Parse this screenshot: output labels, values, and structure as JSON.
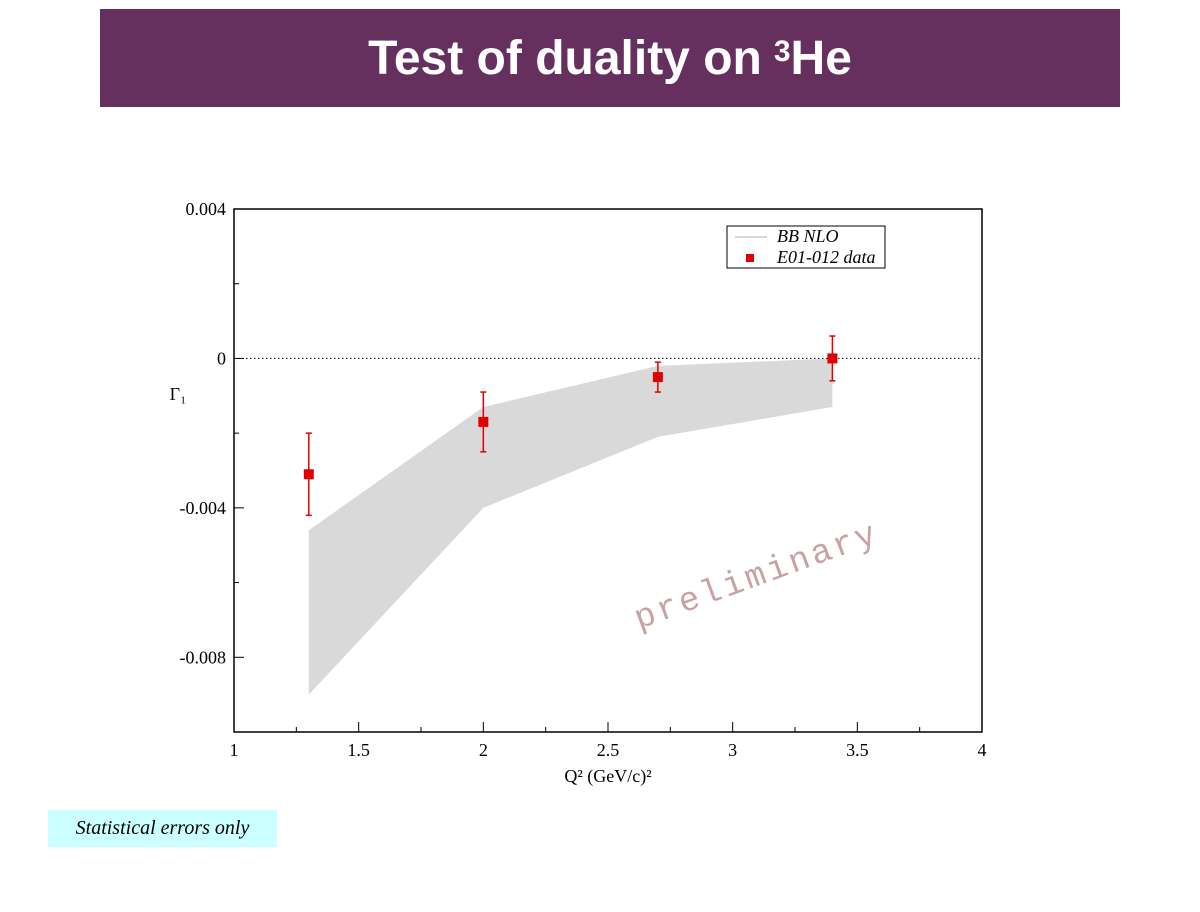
{
  "slide": {
    "title": "Test of duality on",
    "title_superscript": "3",
    "title_end": "He",
    "note": "Statistical errors only"
  },
  "chart_data": {
    "type": "scatter",
    "xlabel": "Q² (GeV/c)²",
    "ylabel": "Γ₁",
    "xlim": [
      1,
      4
    ],
    "xticks": [
      1,
      1.5,
      2,
      2.5,
      3,
      3.5,
      4
    ],
    "xminor_ticks": [
      1.25,
      1.75,
      2.25,
      2.75,
      3.25,
      3.75
    ],
    "ylim": [
      -0.01,
      0.004
    ],
    "yticks": [
      -0.008,
      -0.004,
      0,
      0.004
    ],
    "yminor_ticks": [
      -0.006,
      -0.002,
      0.002
    ],
    "reference_line": 0,
    "legend": "upper right",
    "annotation": "preliminary",
    "series": [
      {
        "name": "BB NLO",
        "type": "band",
        "color": "#d9d9d9",
        "x": [
          1.3,
          2.0,
          2.7,
          3.4
        ],
        "upper": [
          -0.0046,
          -0.0013,
          -0.0002,
          0
        ],
        "lower": [
          -0.009,
          -0.004,
          -0.0021,
          -0.0013
        ]
      },
      {
        "name": "E01-012 data",
        "type": "errorbar",
        "color": "#e00000",
        "x": [
          1.3,
          2.0,
          2.7,
          3.4
        ],
        "values": [
          -0.0031,
          -0.0017,
          -0.0005,
          0
        ],
        "errors": [
          0.0011,
          0.0008,
          0.0004,
          0.0006
        ]
      }
    ]
  }
}
